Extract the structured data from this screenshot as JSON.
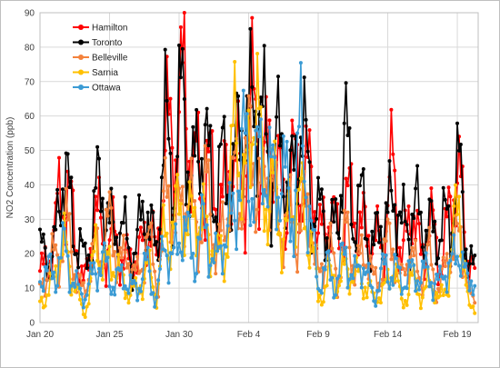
{
  "chart_data": {
    "type": "line",
    "title": "",
    "xlabel": "",
    "ylabel": "NO2 Concentration (ppb)",
    "ylim": [
      0,
      90
    ],
    "yticks": [
      0,
      10,
      20,
      30,
      40,
      50,
      60,
      70,
      80,
      90
    ],
    "xlim": [
      0,
      31.5
    ],
    "xticks": [
      {
        "label": "Jan 20",
        "day": 0
      },
      {
        "label": "Jan 25",
        "day": 5
      },
      {
        "label": "Jan 30",
        "day": 10
      },
      {
        "label": "Feb 4",
        "day": 15
      },
      {
        "label": "Feb 9",
        "day": 20
      },
      {
        "label": "Feb 14",
        "day": 25
      },
      {
        "label": "Feb 19",
        "day": 30
      }
    ],
    "grid": "vertical and horizontal",
    "legend_position": "top-left",
    "series": [
      {
        "name": "Hamilton",
        "color": "#ff0000",
        "anchors": [
          [
            0,
            15
          ],
          [
            1,
            22
          ],
          [
            1.8,
            47
          ],
          [
            2.5,
            22
          ],
          [
            3.2,
            12
          ],
          [
            4,
            30
          ],
          [
            5,
            24
          ],
          [
            6,
            20
          ],
          [
            7,
            16
          ],
          [
            7.7,
            32
          ],
          [
            8.4,
            15
          ],
          [
            9,
            64
          ],
          [
            9.6,
            40
          ],
          [
            10.3,
            77
          ],
          [
            11,
            40
          ],
          [
            12,
            48
          ],
          [
            12.7,
            30
          ],
          [
            13.4,
            45
          ],
          [
            14.1,
            42
          ],
          [
            14.7,
            48
          ],
          [
            15.4,
            58
          ],
          [
            16,
            48
          ],
          [
            16.6,
            50
          ],
          [
            17.2,
            40
          ],
          [
            18,
            38
          ],
          [
            18.7,
            46
          ],
          [
            19.4,
            42
          ],
          [
            20,
            26
          ],
          [
            20.7,
            32
          ],
          [
            21.4,
            24
          ],
          [
            22,
            38
          ],
          [
            22.6,
            28
          ],
          [
            23.3,
            30
          ],
          [
            24,
            20
          ],
          [
            24.7,
            28
          ],
          [
            25.4,
            42
          ],
          [
            26,
            20
          ],
          [
            26.7,
            32
          ],
          [
            27.4,
            20
          ],
          [
            28,
            28
          ],
          [
            28.7,
            18
          ],
          [
            29.4,
            30
          ],
          [
            30.2,
            44
          ],
          [
            30.8,
            18
          ],
          [
            31.3,
            12
          ]
        ]
      },
      {
        "name": "Toronto",
        "color": "#000000",
        "anchors": [
          [
            0,
            18
          ],
          [
            1,
            22
          ],
          [
            1.8,
            44
          ],
          [
            2.5,
            28
          ],
          [
            3.2,
            15
          ],
          [
            4,
            38
          ],
          [
            5,
            30
          ],
          [
            6,
            24
          ],
          [
            7,
            22
          ],
          [
            7.7,
            35
          ],
          [
            8.4,
            20
          ],
          [
            9,
            55
          ],
          [
            9.6,
            45
          ],
          [
            10.3,
            60
          ],
          [
            11,
            45
          ],
          [
            12,
            50
          ],
          [
            12.7,
            38
          ],
          [
            13.4,
            44
          ],
          [
            14.1,
            48
          ],
          [
            14.7,
            55
          ],
          [
            15.4,
            70
          ],
          [
            16,
            52
          ],
          [
            16.6,
            54
          ],
          [
            17.2,
            46
          ],
          [
            18,
            42
          ],
          [
            18.7,
            52
          ],
          [
            19.4,
            46
          ],
          [
            20,
            28
          ],
          [
            20.7,
            30
          ],
          [
            21.4,
            26
          ],
          [
            22,
            56
          ],
          [
            22.6,
            30
          ],
          [
            23.3,
            32
          ],
          [
            24,
            22
          ],
          [
            24.7,
            28
          ],
          [
            25.4,
            40
          ],
          [
            26,
            24
          ],
          [
            26.7,
            36
          ],
          [
            27.4,
            26
          ],
          [
            28,
            30
          ],
          [
            28.7,
            22
          ],
          [
            29.4,
            34
          ],
          [
            30.2,
            40
          ],
          [
            30.8,
            20
          ],
          [
            31.3,
            14
          ]
        ]
      },
      {
        "name": "Belleville",
        "color": "#f4823c",
        "anchors": [
          [
            0,
            10
          ],
          [
            1,
            18
          ],
          [
            1.8,
            28
          ],
          [
            2.5,
            16
          ],
          [
            3.2,
            8
          ],
          [
            4,
            22
          ],
          [
            5,
            26
          ],
          [
            6,
            18
          ],
          [
            7,
            14
          ],
          [
            7.7,
            24
          ],
          [
            8.4,
            12
          ],
          [
            9,
            34
          ],
          [
            9.6,
            30
          ],
          [
            10.3,
            38
          ],
          [
            11,
            30
          ],
          [
            12,
            36
          ],
          [
            12.7,
            22
          ],
          [
            13.4,
            30
          ],
          [
            14.1,
            44
          ],
          [
            14.7,
            40
          ],
          [
            15.4,
            52
          ],
          [
            16,
            38
          ],
          [
            16.6,
            42
          ],
          [
            17.2,
            30
          ],
          [
            18,
            28
          ],
          [
            18.7,
            32
          ],
          [
            19.4,
            30
          ],
          [
            20,
            14
          ],
          [
            20.7,
            20
          ],
          [
            21.4,
            16
          ],
          [
            22,
            24
          ],
          [
            22.6,
            18
          ],
          [
            23.3,
            20
          ],
          [
            24,
            12
          ],
          [
            24.7,
            18
          ],
          [
            25.4,
            24
          ],
          [
            26,
            12
          ],
          [
            26.7,
            20
          ],
          [
            27.4,
            14
          ],
          [
            28,
            18
          ],
          [
            28.7,
            10
          ],
          [
            29.4,
            18
          ],
          [
            30.2,
            28
          ],
          [
            30.8,
            8
          ],
          [
            31.3,
            6
          ]
        ]
      },
      {
        "name": "Sarnia",
        "color": "#ffc000",
        "anchors": [
          [
            0,
            6
          ],
          [
            1,
            12
          ],
          [
            1.8,
            24
          ],
          [
            2.5,
            10
          ],
          [
            3.2,
            2
          ],
          [
            4,
            20
          ],
          [
            5,
            18
          ],
          [
            6,
            12
          ],
          [
            7,
            8
          ],
          [
            7.7,
            18
          ],
          [
            8.4,
            6
          ],
          [
            9,
            30
          ],
          [
            9.6,
            26
          ],
          [
            10.3,
            34
          ],
          [
            11,
            28
          ],
          [
            12,
            30
          ],
          [
            12.7,
            16
          ],
          [
            13.4,
            26
          ],
          [
            14.1,
            58
          ],
          [
            14.7,
            40
          ],
          [
            15.4,
            64
          ],
          [
            16,
            44
          ],
          [
            16.6,
            40
          ],
          [
            17.2,
            28
          ],
          [
            18,
            30
          ],
          [
            18.7,
            36
          ],
          [
            19.4,
            28
          ],
          [
            20,
            6
          ],
          [
            20.7,
            14
          ],
          [
            21.4,
            10
          ],
          [
            22,
            18
          ],
          [
            22.6,
            12
          ],
          [
            23.3,
            14
          ],
          [
            24,
            6
          ],
          [
            24.7,
            10
          ],
          [
            25.4,
            16
          ],
          [
            26,
            6
          ],
          [
            26.7,
            12
          ],
          [
            27.4,
            8
          ],
          [
            28,
            12
          ],
          [
            28.7,
            6
          ],
          [
            29.4,
            14
          ],
          [
            30.2,
            36
          ],
          [
            30.8,
            4
          ],
          [
            31.3,
            4
          ]
        ]
      },
      {
        "name": "Ottawa",
        "color": "#3b9bd4",
        "anchors": [
          [
            0,
            12
          ],
          [
            1,
            16
          ],
          [
            1.8,
            20
          ],
          [
            2.5,
            12
          ],
          [
            3.2,
            6
          ],
          [
            4,
            18
          ],
          [
            5,
            14
          ],
          [
            6,
            12
          ],
          [
            7,
            10
          ],
          [
            7.7,
            16
          ],
          [
            8.4,
            8
          ],
          [
            9,
            22
          ],
          [
            9.6,
            20
          ],
          [
            10.3,
            26
          ],
          [
            11,
            22
          ],
          [
            12,
            26
          ],
          [
            12.7,
            18
          ],
          [
            13.4,
            24
          ],
          [
            14.1,
            40
          ],
          [
            14.7,
            46
          ],
          [
            15.4,
            48
          ],
          [
            16,
            42
          ],
          [
            16.6,
            46
          ],
          [
            17.2,
            40
          ],
          [
            18,
            36
          ],
          [
            18.7,
            50
          ],
          [
            19.4,
            34
          ],
          [
            20,
            10
          ],
          [
            20.7,
            16
          ],
          [
            21.4,
            12
          ],
          [
            22,
            20
          ],
          [
            22.6,
            14
          ],
          [
            23.3,
            16
          ],
          [
            24,
            8
          ],
          [
            24.7,
            14
          ],
          [
            25.4,
            18
          ],
          [
            26,
            10
          ],
          [
            26.7,
            16
          ],
          [
            27.4,
            12
          ],
          [
            28,
            16
          ],
          [
            28.7,
            10
          ],
          [
            29.4,
            18
          ],
          [
            30.2,
            20
          ],
          [
            30.8,
            10
          ],
          [
            31.3,
            18
          ]
        ]
      }
    ]
  }
}
